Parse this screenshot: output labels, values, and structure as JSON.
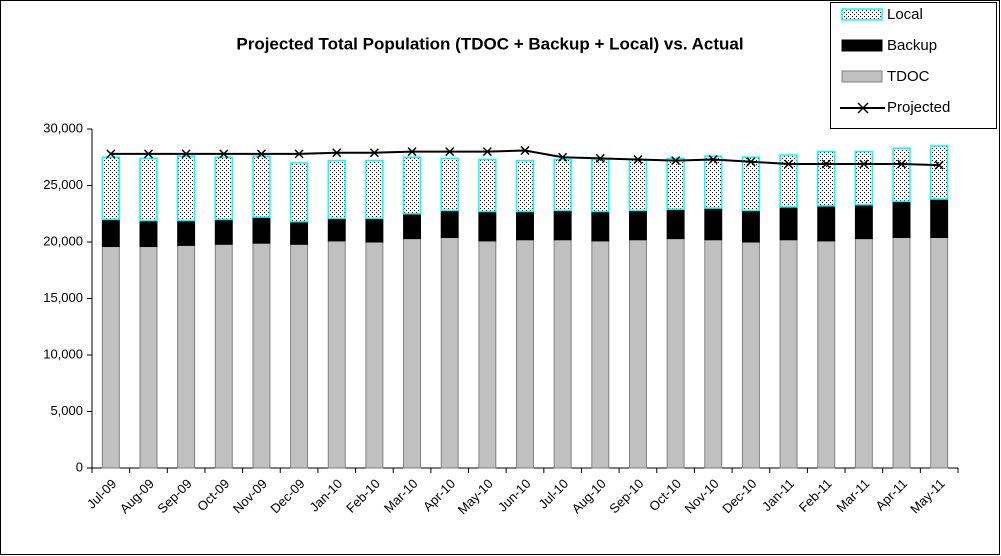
{
  "chart_data": {
    "type": "bar",
    "stacked": true,
    "title": "Projected Total Population (TDOC + Backup + Local) vs. Actual",
    "categories": [
      "Jul-09",
      "Aug-09",
      "Sep-09",
      "Oct-09",
      "Nov-09",
      "Dec-09",
      "Jan-10",
      "Feb-10",
      "Mar-10",
      "Apr-10",
      "May-10",
      "Jun-10",
      "Jul-10",
      "Aug-10",
      "Sep-10",
      "Oct-10",
      "Nov-10",
      "Dec-10",
      "Jan-11",
      "Feb-11",
      "Mar-11",
      "Apr-11",
      "May-11"
    ],
    "series": [
      {
        "name": "Local",
        "color": "#00ffff",
        "values": [
          5500,
          5500,
          5700,
          5500,
          5400,
          5200,
          5100,
          5100,
          5000,
          4600,
          4600,
          4500,
          4500,
          4600,
          4500,
          4500,
          4600,
          4700,
          4600,
          4800,
          4700,
          4700,
          4700
        ]
      },
      {
        "name": "Backup",
        "color": "#000000",
        "values": [
          2400,
          2300,
          2200,
          2200,
          2300,
          2000,
          2000,
          2100,
          2200,
          2400,
          2600,
          2500,
          2600,
          2600,
          2600,
          2600,
          2800,
          2800,
          2900,
          3100,
          3000,
          3200,
          3400
        ]
      },
      {
        "name": "TDOC",
        "color": "#c0c0c0",
        "values": [
          19600,
          19600,
          19700,
          19800,
          19900,
          19800,
          20100,
          20000,
          20300,
          20400,
          20100,
          20200,
          20200,
          20100,
          20200,
          20300,
          20200,
          20000,
          20200,
          20100,
          20300,
          20400,
          20400
        ]
      },
      {
        "name": "Projected",
        "type": "line",
        "color": "#000000",
        "values": [
          27800,
          27800,
          27800,
          27800,
          27800,
          27800,
          27900,
          27900,
          28000,
          28000,
          28000,
          28100,
          27500,
          27400,
          27300,
          27200,
          27300,
          27100,
          26900,
          26900,
          26900,
          26900,
          26800
        ]
      }
    ],
    "ylim": [
      0,
      30000
    ],
    "yticks": [
      0,
      {
        "value": 5000,
        "label": "5,000"
      },
      {
        "value": 10000,
        "label": "10,000"
      },
      {
        "value": 15000,
        "label": "15,000"
      },
      {
        "value": 20000,
        "label": "20,000"
      },
      {
        "value": 25000,
        "label": "25,000"
      },
      {
        "value": 30000,
        "label": "30,000"
      }
    ],
    "grid": false,
    "legend": "top-right"
  }
}
